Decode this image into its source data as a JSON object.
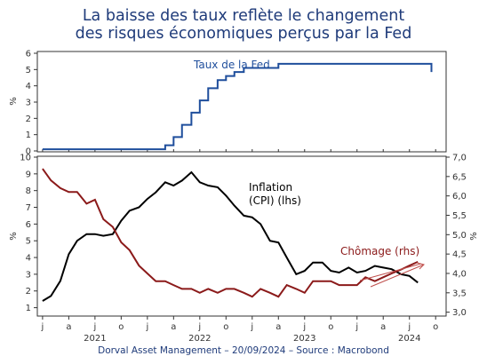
{
  "title_line1": "La baisse des taux reflète le changement",
  "title_line2": "des risques économiques perçus par la Fed",
  "footer": "Dorval Asset Management – 20/09/2024 –   Source : Macrobond",
  "colors": {
    "title": "#1f3b7a",
    "fed": "#1f4e9c",
    "inflation": "#000000",
    "chomage": "#8b1a1a"
  },
  "chart_data": [
    {
      "type": "line",
      "ylabel": "%",
      "ylim": [
        0,
        6
      ],
      "yticks": [
        "0",
        "1",
        "2",
        "3",
        "4",
        "5",
        "6"
      ],
      "annotation": "Taux de la Fed",
      "series": [
        {
          "name": "Taux de la Fed",
          "color": "#1f4e9c",
          "x": [
            2021.0,
            2021.17,
            2021.33,
            2021.5,
            2021.67,
            2021.83,
            2022.0,
            2022.17,
            2022.25,
            2022.33,
            2022.42,
            2022.5,
            2022.58,
            2022.67,
            2022.75,
            2022.83,
            2022.92,
            2023.0,
            2023.08,
            2023.17,
            2023.25,
            2023.33,
            2023.42,
            2023.5,
            2023.58,
            2023.67,
            2023.75,
            2023.83,
            2023.92,
            2024.0,
            2024.17,
            2024.33,
            2024.5,
            2024.67,
            2024.71
          ],
          "y": [
            0.1,
            0.1,
            0.1,
            0.1,
            0.1,
            0.1,
            0.1,
            0.35,
            0.85,
            1.6,
            2.35,
            3.1,
            3.85,
            4.35,
            4.6,
            4.85,
            5.1,
            5.1,
            5.1,
            5.1,
            5.35,
            5.35,
            5.35,
            5.35,
            5.35,
            5.35,
            5.35,
            5.35,
            5.35,
            5.35,
            5.35,
            5.35,
            5.35,
            5.35,
            4.85
          ]
        }
      ]
    },
    {
      "type": "line",
      "ylabel_left": "%",
      "ylabel_right": "%",
      "ylim_left": [
        0.5,
        10
      ],
      "ylim_right": [
        2.9,
        7.0
      ],
      "yticks_left": [
        "1",
        "2",
        "3",
        "4",
        "5",
        "6",
        "7",
        "8",
        "9",
        "10"
      ],
      "yticks_right": [
        "3,0",
        "3,5",
        "4,0",
        "4,5",
        "5,0",
        "5,5",
        "6,0",
        "6,5",
        "7,0"
      ],
      "xtick_months": [
        "j",
        "a",
        "j",
        "o",
        "j",
        "a",
        "j",
        "o",
        "j",
        "a",
        "j",
        "o",
        "j",
        "a",
        "j",
        "o"
      ],
      "xtick_years": [
        "2021",
        "2022",
        "2023",
        "2024"
      ],
      "annotations": {
        "inflation_line1": "Inflation",
        "inflation_line2": "(CPI) (lhs)",
        "chomage": "Chômage (rhs)"
      },
      "series": [
        {
          "name": "Inflation (CPI) (lhs)",
          "axis": "left",
          "color": "#000000",
          "x": [
            2021.0,
            2021.08,
            2021.17,
            2021.25,
            2021.33,
            2021.42,
            2021.5,
            2021.58,
            2021.67,
            2021.75,
            2021.83,
            2021.92,
            2022.0,
            2022.08,
            2022.17,
            2022.25,
            2022.33,
            2022.42,
            2022.5,
            2022.58,
            2022.67,
            2022.75,
            2022.83,
            2022.92,
            2023.0,
            2023.08,
            2023.17,
            2023.25,
            2023.33,
            2023.42,
            2023.5,
            2023.58,
            2023.67,
            2023.75,
            2023.83,
            2023.92,
            2024.0,
            2024.08,
            2024.17,
            2024.25,
            2024.33,
            2024.42,
            2024.5,
            2024.58
          ],
          "y": [
            1.4,
            1.7,
            2.6,
            4.2,
            5.0,
            5.4,
            5.4,
            5.3,
            5.4,
            6.2,
            6.8,
            7.0,
            7.5,
            7.9,
            8.5,
            8.3,
            8.6,
            9.1,
            8.5,
            8.3,
            8.2,
            7.7,
            7.1,
            6.5,
            6.4,
            6.0,
            5.0,
            4.9,
            4.0,
            3.0,
            3.2,
            3.7,
            3.7,
            3.2,
            3.1,
            3.4,
            3.1,
            3.2,
            3.5,
            3.4,
            3.3,
            3.0,
            2.9,
            2.5
          ]
        },
        {
          "name": "Chômage (rhs)",
          "axis": "right",
          "color": "#8b1a1a",
          "x": [
            2021.0,
            2021.08,
            2021.17,
            2021.25,
            2021.33,
            2021.42,
            2021.5,
            2021.58,
            2021.67,
            2021.75,
            2021.83,
            2021.92,
            2022.0,
            2022.08,
            2022.17,
            2022.25,
            2022.33,
            2022.42,
            2022.5,
            2022.58,
            2022.67,
            2022.75,
            2022.83,
            2022.92,
            2023.0,
            2023.08,
            2023.17,
            2023.25,
            2023.33,
            2023.42,
            2023.5,
            2023.58,
            2023.67,
            2023.75,
            2023.83,
            2023.92,
            2024.0,
            2024.08,
            2024.17,
            2024.25,
            2024.33,
            2024.42,
            2024.5,
            2024.58
          ],
          "y": [
            6.7,
            6.4,
            6.2,
            6.1,
            6.1,
            5.8,
            5.9,
            5.4,
            5.2,
            4.8,
            4.6,
            4.2,
            4.0,
            3.8,
            3.8,
            3.7,
            3.6,
            3.6,
            3.5,
            3.6,
            3.5,
            3.6,
            3.6,
            3.5,
            3.4,
            3.6,
            3.5,
            3.4,
            3.7,
            3.6,
            3.5,
            3.8,
            3.8,
            3.8,
            3.7,
            3.7,
            3.7,
            3.9,
            3.8,
            3.9,
            4.0,
            4.1,
            4.2,
            4.3
          ]
        }
      ]
    }
  ]
}
